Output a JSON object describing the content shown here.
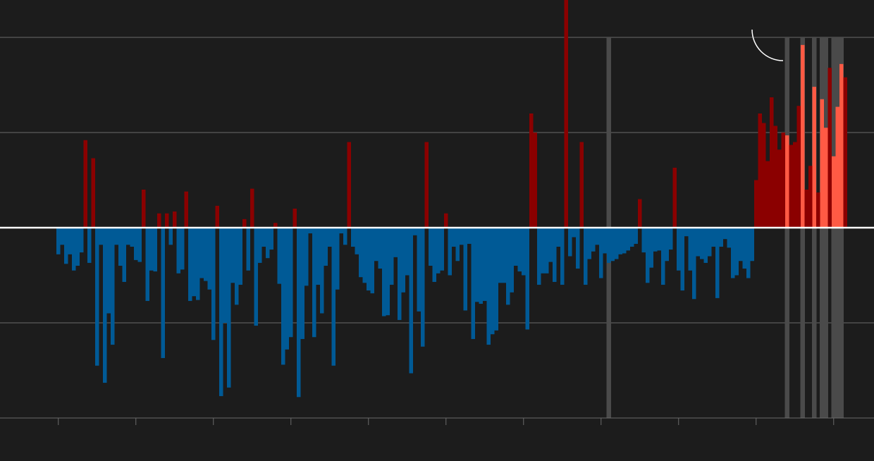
{
  "colors": {
    "background": "#1c1c1c",
    "warm": "#8b0000",
    "warm_highlight": "#ff5a44",
    "cool": "#005a96",
    "grid": "#6a6a6a",
    "baseline": "#ffffff",
    "highlight_band": "#4a4a4a"
  },
  "chart_data": {
    "type": "bar",
    "title": "",
    "xlabel": "",
    "ylabel": "",
    "grid": true,
    "legend": "none",
    "x_start": 1,
    "x_end": 204,
    "ylim": [
      -200,
      200
    ],
    "gridlines": [
      -200,
      -100,
      0,
      100,
      200
    ],
    "x_ticks": [
      1,
      21,
      41,
      61,
      81,
      101,
      121,
      141,
      161,
      181,
      201
    ],
    "highlighted_years": [
      143,
      189,
      193,
      196,
      198,
      199,
      201,
      202,
      203
    ],
    "values": [
      -28,
      -18,
      -38,
      -28,
      -45,
      -40,
      -26,
      92,
      -37,
      73,
      -145,
      -18,
      -163,
      -90,
      -123,
      -18,
      -40,
      -57,
      -18,
      -20,
      -34,
      -36,
      40,
      -77,
      -45,
      -46,
      15,
      -137,
      15,
      -18,
      17,
      -48,
      -44,
      38,
      -77,
      -72,
      -76,
      -53,
      -56,
      -65,
      -118,
      23,
      -177,
      -100,
      -168,
      -58,
      -81,
      -60,
      9,
      -45,
      41,
      -103,
      -37,
      -20,
      -32,
      -23,
      5,
      -59,
      -144,
      -128,
      -115,
      20,
      -178,
      -117,
      -61,
      -6,
      -115,
      -60,
      -90,
      -40,
      -20,
      -145,
      -65,
      -6,
      -18,
      90,
      -20,
      -28,
      -52,
      -58,
      -66,
      -69,
      -35,
      -43,
      -93,
      -92,
      -60,
      -31,
      -97,
      -68,
      -50,
      -153,
      -8,
      -88,
      -125,
      90,
      -40,
      -57,
      -48,
      -45,
      15,
      -50,
      -20,
      -35,
      -18,
      -87,
      -17,
      -117,
      -78,
      -80,
      -77,
      -123,
      -112,
      -108,
      -58,
      -58,
      -81,
      -68,
      -40,
      -46,
      -50,
      -107,
      120,
      100,
      -60,
      -48,
      -48,
      -36,
      -57,
      -20,
      -60,
      240,
      -30,
      -10,
      -43,
      90,
      -60,
      -33,
      -25,
      -18,
      -53,
      -27,
      -37,
      -35,
      -33,
      -28,
      -27,
      -24,
      -20,
      -17,
      30,
      -26,
      -58,
      -42,
      -25,
      -24,
      -60,
      -35,
      -23,
      63,
      -45,
      -66,
      -9,
      -45,
      -75,
      -30,
      -33,
      -37,
      -30,
      -20,
      -74,
      -20,
      -12,
      -21,
      -53,
      -50,
      -35,
      -43,
      -53,
      -35,
      50,
      120,
      110,
      70,
      137,
      107,
      82,
      100,
      97,
      87,
      90,
      128,
      192,
      40,
      65,
      148,
      37,
      135,
      105,
      168,
      75,
      127,
      172,
      158
    ]
  }
}
